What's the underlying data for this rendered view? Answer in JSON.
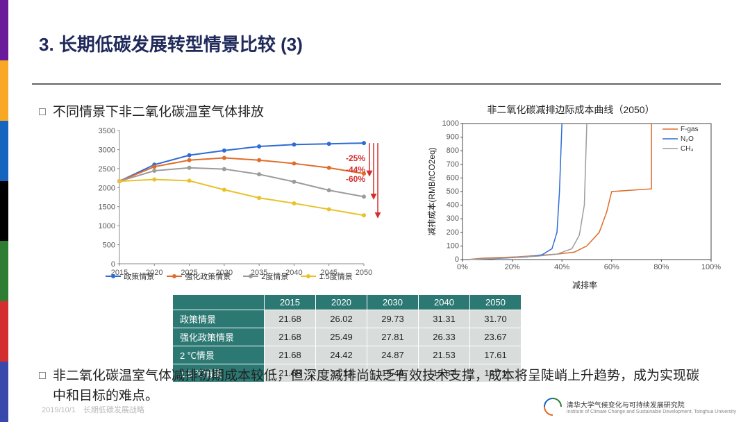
{
  "stripe_colors": [
    "#6a1b9a",
    "#f9a825",
    "#1565c0",
    "#000000",
    "#2e7d32",
    "#d32f2f",
    "#3949ab"
  ],
  "title": "3. 长期低碳发展转型情景比较 (3)",
  "bullet1": "不同情景下非二氧化碳温室气体排放",
  "bullet2": "非二氧化碳温室气体减排初期成本较低，但深度减排尚缺乏有效技术支撑，成本将呈陡峭上升趋势，成为实现碳中和目标的难点。",
  "chart1": {
    "type": "line",
    "x": [
      2015,
      2020,
      2025,
      2030,
      2035,
      2040,
      2045,
      2050
    ],
    "series": [
      {
        "name": "政策情景",
        "color": "#2e6bd6",
        "y": [
          2168,
          2602,
          2850,
          2973,
          3080,
          3131,
          3150,
          3170
        ]
      },
      {
        "name": "强化政策情景",
        "color": "#e06c2a",
        "y": [
          2168,
          2549,
          2720,
          2781,
          2720,
          2633,
          2520,
          2367
        ]
      },
      {
        "name": "2度情景",
        "color": "#9b9b9b",
        "y": [
          2168,
          2442,
          2520,
          2487,
          2350,
          2153,
          1930,
          1761
        ]
      },
      {
        "name": "1.5度情景",
        "color": "#e8c22a",
        "y": [
          2168,
          2213,
          2180,
          1944,
          1730,
          1587,
          1430,
          1271
        ]
      }
    ],
    "ylim": [
      0,
      3500
    ],
    "ytick_step": 500,
    "xlim": [
      2015,
      2050
    ],
    "legend_labels": [
      "政策情景",
      "强化政策情景",
      "2度情景",
      "1.5度情景"
    ],
    "annotations": [
      {
        "pct": "-25%",
        "color": "#d32f2f",
        "y_from": 3170,
        "y_to": 2367,
        "x": 2051
      },
      {
        "pct": "-44%",
        "color": "#d32f2f",
        "y_from": 3170,
        "y_to": 1761,
        "x": 2052
      },
      {
        "pct": "-60%",
        "color": "#d32f2f",
        "y_from": 3170,
        "y_to": 1271,
        "x": 2053
      }
    ],
    "axis_text_size": 11
  },
  "chart2": {
    "type": "line-step",
    "title": "非二氧化碳减排边际成本曲线（2050）",
    "ylabel": "减排成本(RMB/tCO2eq)",
    "xlabel": "减排率",
    "xlim": [
      0,
      100
    ],
    "xtick_step": 20,
    "xtick_suffix": "%",
    "ylim": [
      0,
      1000
    ],
    "ytick_step": 100,
    "series": [
      {
        "name": "F-gas",
        "color": "#e06c2a",
        "pts": [
          [
            2,
            0
          ],
          [
            8,
            10
          ],
          [
            15,
            15
          ],
          [
            22,
            20
          ],
          [
            30,
            30
          ],
          [
            38,
            40
          ],
          [
            45,
            55
          ],
          [
            50,
            100
          ],
          [
            55,
            200
          ],
          [
            58,
            350
          ],
          [
            60,
            500
          ],
          [
            76,
            520
          ],
          [
            76,
            1000
          ]
        ]
      },
      {
        "name": "N₂O",
        "color": "#2e6bd6",
        "pts": [
          [
            2,
            0
          ],
          [
            10,
            5
          ],
          [
            18,
            12
          ],
          [
            26,
            20
          ],
          [
            32,
            35
          ],
          [
            36,
            80
          ],
          [
            38,
            200
          ],
          [
            39,
            500
          ],
          [
            40,
            1000
          ]
        ]
      },
      {
        "name": "CH₄",
        "color": "#9b9b9b",
        "pts": [
          [
            2,
            0
          ],
          [
            12,
            8
          ],
          [
            20,
            15
          ],
          [
            30,
            25
          ],
          [
            38,
            40
          ],
          [
            44,
            80
          ],
          [
            47,
            180
          ],
          [
            49,
            400
          ],
          [
            50,
            1000
          ]
        ]
      }
    ],
    "border_color": "#444",
    "legend_pos": "top-right"
  },
  "table": {
    "columns": [
      "2015",
      "2020",
      "2030",
      "2040",
      "2050"
    ],
    "rows": [
      {
        "head": "政策情景",
        "cells": [
          "21.68",
          "26.02",
          "29.73",
          "31.31",
          "31.70"
        ]
      },
      {
        "head": "强化政策情景",
        "cells": [
          "21.68",
          "25.49",
          "27.81",
          "26.33",
          "23.67"
        ]
      },
      {
        "head": "2 ℃情景",
        "cells": [
          "21.68",
          "24.42",
          "24.87",
          "21.53",
          "17.61"
        ]
      },
      {
        "head": "1.5 ℃情景",
        "cells": [
          "21.68",
          "22.13",
          "19.44",
          "15.87",
          "12.71"
        ]
      }
    ],
    "header_bg": "#2c7873",
    "header_fg": "#ffffff",
    "cell_bg": "#d8dddc",
    "cell_fg": "#222222"
  },
  "footer_note": "2019/10/1　长期低碳发展战略",
  "footer_org_cn": "清华大学气候变化与可持续发展研究院",
  "footer_org_en": "Institute of Climate Change and Sustainable Development, Tsinghua University"
}
